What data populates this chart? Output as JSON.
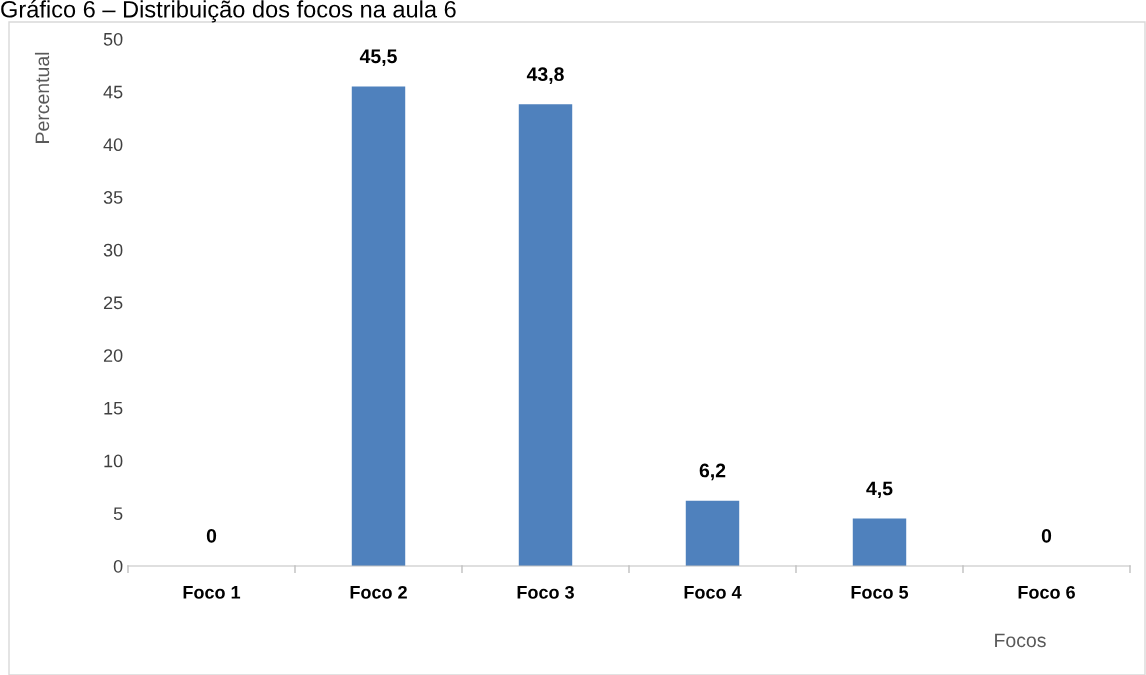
{
  "chart_data": {
    "type": "bar",
    "title": "Gráfico 6 – Distribuição dos focos na aula 6",
    "categories": [
      "Foco 1",
      "Foco 2",
      "Foco 3",
      "Foco 4",
      "Foco 5",
      "Foco 6"
    ],
    "values": [
      0,
      45.5,
      43.8,
      6.2,
      4.5,
      0
    ],
    "value_labels": [
      "0",
      "45,5",
      "43,8",
      "6,2",
      "4,5",
      "0"
    ],
    "color": "#4f81bd",
    "xlabel": "Focos",
    "ylabel": "Percentual",
    "ylim": [
      0,
      50
    ],
    "yticks": [
      0,
      5,
      10,
      15,
      20,
      25,
      30,
      35,
      40,
      45,
      50
    ],
    "grid": false,
    "legend": false
  }
}
